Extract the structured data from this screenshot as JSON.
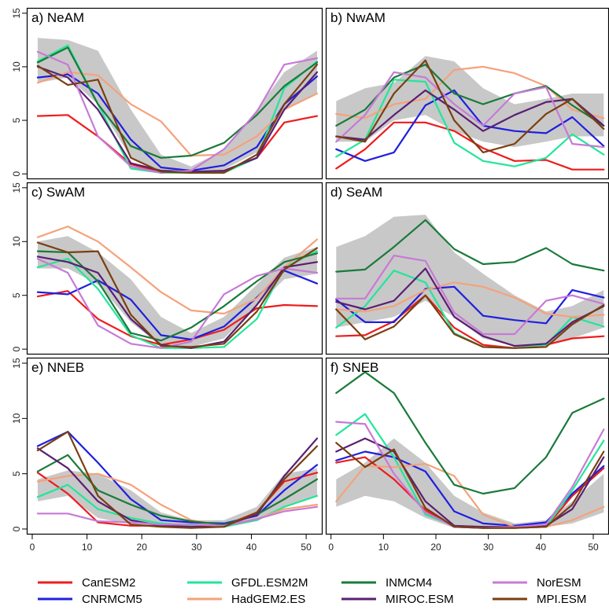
{
  "chart_data": [
    {
      "type": "line",
      "title": "a) NeAM",
      "xlim": [
        -1,
        53
      ],
      "ylim": [
        -0.5,
        15.5
      ],
      "x": [
        1,
        6.5,
        12,
        18,
        23.5,
        29,
        35,
        41,
        46,
        52
      ],
      "band": {
        "lower": [
          8.5,
          9.0,
          6.5,
          1.5,
          0.3,
          0.2,
          0.4,
          2.0,
          6.0,
          7.5
        ],
        "upper": [
          12.7,
          12.5,
          11.5,
          6.0,
          1.8,
          0.7,
          2.2,
          6.0,
          9.5,
          11.5
        ]
      },
      "series": [
        {
          "name": "CanESM2",
          "values": [
            5.4,
            5.5,
            3.5,
            0.9,
            0.2,
            0.1,
            0.2,
            1.5,
            4.8,
            5.4
          ]
        },
        {
          "name": "CNRMCM5",
          "values": [
            9.0,
            9.3,
            7.5,
            3.2,
            0.6,
            0.3,
            0.8,
            2.5,
            6.5,
            9.1
          ]
        },
        {
          "name": "GFDL.ESM2M",
          "values": [
            10.5,
            12.0,
            6.5,
            0.5,
            0.1,
            0.1,
            0.1,
            1.5,
            8.0,
            10.5
          ]
        },
        {
          "name": "HadGEM2.ES",
          "values": [
            8.5,
            9.5,
            9.2,
            6.5,
            4.9,
            1.7,
            1.8,
            3.5,
            6.0,
            7.5
          ]
        },
        {
          "name": "INMCM4",
          "values": [
            10.4,
            11.8,
            6.5,
            2.6,
            1.5,
            1.7,
            2.9,
            5.5,
            8.2,
            10.4
          ]
        },
        {
          "name": "MIROC.ESM",
          "values": [
            10.0,
            9.0,
            6.0,
            1.0,
            0.3,
            0.2,
            0.3,
            1.5,
            6.0,
            9.5
          ]
        },
        {
          "name": "NorESM",
          "values": [
            11.4,
            10.2,
            3.5,
            0.7,
            0.1,
            0.3,
            2.3,
            5.8,
            10.2,
            10.8
          ]
        },
        {
          "name": "MPI.ESM",
          "values": [
            10.1,
            8.3,
            8.8,
            1.5,
            0.2,
            0.1,
            0.1,
            1.8,
            6.5,
            10.2
          ]
        }
      ]
    },
    {
      "type": "line",
      "title": "b) NwAM",
      "xlim": [
        -1,
        53
      ],
      "ylim": [
        -0.5,
        15.5
      ],
      "x": [
        1,
        6.5,
        12,
        18,
        23.5,
        29,
        35,
        41,
        46,
        52
      ],
      "band": {
        "lower": [
          3.0,
          3.0,
          5.0,
          5.5,
          4.0,
          3.0,
          2.5,
          3.0,
          3.5,
          3.5
        ],
        "upper": [
          6.8,
          8.0,
          8.5,
          11.0,
          10.5,
          8.0,
          6.5,
          7.0,
          7.5,
          7.5
        ]
      },
      "series": [
        {
          "name": "CanESM2",
          "values": [
            0.5,
            2.3,
            4.8,
            4.8,
            4.0,
            2.4,
            1.2,
            1.3,
            0.4,
            0.4
          ]
        },
        {
          "name": "CNRMCM5",
          "values": [
            2.3,
            1.2,
            2.0,
            6.4,
            7.8,
            4.5,
            4.0,
            3.8,
            5.3,
            2.6
          ]
        },
        {
          "name": "GFDL.ESM2M",
          "values": [
            1.6,
            3.2,
            8.8,
            8.6,
            2.9,
            1.2,
            0.7,
            1.5,
            3.7,
            1.8
          ]
        },
        {
          "name": "HadGEM2.ES",
          "values": [
            5.6,
            5.2,
            6.5,
            7.0,
            9.7,
            10.0,
            9.4,
            8.2,
            6.0,
            5.2
          ]
        },
        {
          "name": "INMCM4",
          "values": [
            4.5,
            6.0,
            9.0,
            10.2,
            7.5,
            6.5,
            7.5,
            8.2,
            6.4,
            4.5
          ]
        },
        {
          "name": "MIROC.ESM",
          "values": [
            3.5,
            3.2,
            5.5,
            7.8,
            6.0,
            4.0,
            5.5,
            6.7,
            7.0,
            4.5
          ]
        },
        {
          "name": "NorESM",
          "values": [
            3.0,
            5.5,
            9.5,
            9.0,
            6.5,
            4.5,
            7.5,
            8.1,
            2.8,
            2.5
          ]
        },
        {
          "name": "MPI.ESM",
          "values": [
            3.5,
            3.0,
            7.5,
            10.6,
            5.0,
            2.0,
            2.8,
            5.6,
            7.0,
            4.2
          ]
        }
      ]
    },
    {
      "type": "line",
      "title": "c) SwAM",
      "xlim": [
        -1,
        53
      ],
      "ylim": [
        -0.5,
        15.5
      ],
      "x": [
        1,
        6.5,
        12,
        18,
        23.5,
        29,
        35,
        41,
        46,
        52
      ],
      "band": {
        "lower": [
          7.5,
          7.5,
          6.0,
          2.5,
          0.3,
          0.2,
          1.0,
          4.0,
          6.5,
          7.0
        ],
        "upper": [
          10.0,
          10.5,
          9.0,
          6.5,
          3.0,
          1.5,
          3.0,
          6.0,
          8.5,
          9.5
        ]
      },
      "series": [
        {
          "name": "CanESM2",
          "values": [
            4.9,
            5.4,
            2.8,
            1.2,
            0.4,
            0.9,
            1.8,
            3.8,
            4.1,
            4.0
          ]
        },
        {
          "name": "CNRMCM5",
          "values": [
            5.3,
            5.1,
            6.4,
            4.6,
            1.3,
            0.9,
            2.1,
            4.8,
            7.3,
            6.1
          ]
        },
        {
          "name": "GFDL.ESM2M",
          "values": [
            7.6,
            8.4,
            5.6,
            1.3,
            0.1,
            0.1,
            0.2,
            2.8,
            7.6,
            9.1
          ]
        },
        {
          "name": "HadGEM2.ES",
          "values": [
            10.4,
            11.4,
            10.0,
            7.6,
            5.3,
            3.6,
            3.3,
            4.7,
            7.6,
            10.2
          ]
        },
        {
          "name": "INMCM4",
          "values": [
            9.1,
            9.0,
            6.3,
            1.5,
            0.8,
            2.0,
            4.0,
            6.3,
            8.1,
            8.9
          ]
        },
        {
          "name": "MIROC.ESM",
          "values": [
            8.6,
            8.1,
            7.1,
            2.8,
            0.4,
            0.1,
            0.7,
            4.1,
            7.6,
            8.1
          ]
        },
        {
          "name": "NorESM",
          "values": [
            8.4,
            7.1,
            2.2,
            0.5,
            0.1,
            0.7,
            5.1,
            6.8,
            7.5,
            7.1
          ]
        },
        {
          "name": "MPI.ESM",
          "values": [
            9.9,
            9.0,
            9.1,
            3.2,
            0.3,
            0.2,
            0.5,
            3.5,
            7.4,
            9.4
          ]
        }
      ]
    },
    {
      "type": "line",
      "title": "d) SeAM",
      "xlim": [
        -1,
        53
      ],
      "ylim": [
        -0.5,
        15.5
      ],
      "x": [
        1,
        6.5,
        12,
        18,
        23.5,
        29,
        35,
        41,
        46,
        52
      ],
      "band": {
        "lower": [
          2.0,
          2.5,
          3.0,
          4.5,
          3.0,
          1.0,
          0.3,
          0.3,
          1.0,
          2.0
        ],
        "upper": [
          9.5,
          10.5,
          12.3,
          12.5,
          9.0,
          7.0,
          5.0,
          3.5,
          4.0,
          5.5
        ]
      },
      "series": [
        {
          "name": "CanESM2",
          "values": [
            1.2,
            1.3,
            2.6,
            5.0,
            2.0,
            0.4,
            0.1,
            0.4,
            1.0,
            1.2
          ]
        },
        {
          "name": "CNRMCM5",
          "values": [
            4.6,
            2.5,
            2.5,
            5.6,
            5.8,
            3.1,
            2.7,
            2.4,
            5.5,
            4.8
          ]
        },
        {
          "name": "GFDL.ESM2M",
          "values": [
            2.0,
            4.0,
            7.3,
            6.2,
            1.5,
            0.2,
            0.1,
            0.4,
            3.0,
            2.1
          ]
        },
        {
          "name": "HadGEM2.ES",
          "values": [
            3.7,
            3.5,
            4.0,
            5.5,
            6.2,
            5.8,
            4.8,
            3.3,
            3.0,
            3.2
          ]
        },
        {
          "name": "INMCM4",
          "values": [
            7.2,
            7.4,
            9.5,
            12.0,
            9.3,
            7.9,
            8.1,
            9.4,
            7.9,
            7.3
          ]
        },
        {
          "name": "MIROC.ESM",
          "values": [
            4.4,
            3.7,
            4.5,
            7.5,
            3.0,
            1.2,
            0.3,
            0.5,
            2.5,
            4.0
          ]
        },
        {
          "name": "NorESM",
          "values": [
            4.7,
            4.7,
            8.7,
            8.2,
            3.4,
            1.4,
            1.4,
            4.5,
            5.0,
            4.2
          ]
        },
        {
          "name": "MPI.ESM",
          "values": [
            3.7,
            0.9,
            2.1,
            5.0,
            1.4,
            0.2,
            0.1,
            0.2,
            2.3,
            4.1
          ]
        }
      ]
    },
    {
      "type": "line",
      "title": "e) NNEB",
      "xlim": [
        -1,
        53
      ],
      "ylim": [
        -0.5,
        15.5
      ],
      "x": [
        1,
        6.5,
        12,
        18,
        23.5,
        29,
        35,
        41,
        46,
        52
      ],
      "band": {
        "lower": [
          2.5,
          3.0,
          1.0,
          0.4,
          0.2,
          0.1,
          0.2,
          0.7,
          2.0,
          3.0
        ],
        "upper": [
          4.5,
          5.3,
          5.0,
          3.5,
          1.5,
          0.8,
          0.8,
          2.0,
          5.0,
          5.5
        ]
      },
      "series": [
        {
          "name": "CanESM2",
          "values": [
            5.1,
            3.2,
            0.6,
            0.3,
            0.3,
            0.2,
            0.3,
            1.5,
            4.3,
            5.1
          ]
        },
        {
          "name": "CNRMCM5",
          "values": [
            7.5,
            8.8,
            6.0,
            2.7,
            0.8,
            0.6,
            0.5,
            1.2,
            3.5,
            5.8
          ]
        },
        {
          "name": "GFDL.ESM2M",
          "values": [
            2.9,
            4.0,
            1.8,
            1.0,
            0.5,
            0.3,
            0.2,
            0.8,
            2.0,
            3.0
          ]
        },
        {
          "name": "HadGEM2.ES",
          "values": [
            4.3,
            4.8,
            5.0,
            4.0,
            2.2,
            0.8,
            0.3,
            0.9,
            1.8,
            2.2
          ]
        },
        {
          "name": "INMCM4",
          "values": [
            5.2,
            6.7,
            3.5,
            2.2,
            1.2,
            0.7,
            0.4,
            1.3,
            2.7,
            4.5
          ]
        },
        {
          "name": "MIROC.ESM",
          "values": [
            7.3,
            5.5,
            2.5,
            0.8,
            0.3,
            0.2,
            0.3,
            1.3,
            4.8,
            8.2
          ]
        },
        {
          "name": "NorESM",
          "values": [
            1.4,
            1.4,
            0.7,
            0.6,
            0.4,
            0.4,
            0.3,
            0.9,
            1.6,
            2.0
          ]
        },
        {
          "name": "MPI.ESM",
          "values": [
            7.1,
            8.8,
            3.0,
            0.4,
            0.2,
            0.1,
            0.2,
            1.5,
            4.5,
            7.5
          ]
        }
      ]
    },
    {
      "type": "line",
      "title": "f) SNEB",
      "xlim": [
        -1,
        53
      ],
      "ylim": [
        -0.5,
        15.5
      ],
      "x": [
        1,
        6.5,
        12,
        18,
        23.5,
        29,
        35,
        41,
        46,
        52
      ],
      "band": {
        "lower": [
          2.0,
          3.0,
          2.5,
          1.0,
          0.1,
          0.1,
          0.1,
          0.2,
          0.5,
          1.5
        ],
        "upper": [
          4.5,
          6.0,
          8.2,
          6.0,
          3.0,
          1.5,
          0.5,
          0.8,
          2.5,
          5.0
        ]
      },
      "series": [
        {
          "name": "CanESM2",
          "values": [
            6.0,
            6.5,
            4.5,
            1.7,
            0.2,
            0.1,
            0.1,
            0.2,
            3.0,
            5.5
          ]
        },
        {
          "name": "CNRMCM5",
          "values": [
            6.2,
            7.0,
            6.5,
            5.2,
            1.6,
            0.5,
            0.3,
            0.6,
            3.2,
            5.7
          ]
        },
        {
          "name": "GFDL.ESM2M",
          "values": [
            8.5,
            10.4,
            6.5,
            1.3,
            0.3,
            0.1,
            0.1,
            0.2,
            3.5,
            8.0
          ]
        },
        {
          "name": "HadGEM2.ES",
          "values": [
            2.5,
            5.7,
            5.6,
            5.9,
            4.8,
            1.3,
            0.2,
            0.2,
            0.8,
            2.0
          ]
        },
        {
          "name": "INMCM4",
          "values": [
            12.3,
            14.2,
            12.3,
            7.8,
            4.0,
            3.2,
            3.7,
            6.5,
            10.5,
            11.8
          ]
        },
        {
          "name": "MIROC.ESM",
          "values": [
            7.0,
            8.2,
            7.0,
            2.5,
            0.3,
            0.2,
            0.2,
            0.3,
            1.8,
            6.5
          ]
        },
        {
          "name": "NorESM",
          "values": [
            9.7,
            9.5,
            5.0,
            1.5,
            0.2,
            0.1,
            0.2,
            0.4,
            3.8,
            9.0
          ]
        },
        {
          "name": "MPI.ESM",
          "values": [
            7.8,
            5.6,
            7.2,
            1.9,
            0.2,
            0.1,
            0.1,
            0.2,
            2.2,
            7.0
          ]
        }
      ]
    }
  ],
  "axes": {
    "y_ticks": [
      0,
      5,
      10,
      15
    ],
    "x_ticks": [
      0,
      10,
      20,
      30,
      40,
      50
    ]
  },
  "legend": [
    {
      "name": "CanESM2",
      "color": "#ee1c1c"
    },
    {
      "name": "CNRMCM5",
      "color": "#1f1fe0"
    },
    {
      "name": "GFDL.ESM2M",
      "color": "#22e69a"
    },
    {
      "name": "HadGEM2.ES",
      "color": "#f5a27a"
    },
    {
      "name": "INMCM4",
      "color": "#1a7a3a"
    },
    {
      "name": "MIROC.ESM",
      "color": "#5a1f73"
    },
    {
      "name": "NorESM",
      "color": "#c77ad6"
    },
    {
      "name": "MPI.ESM",
      "color": "#7a3f10"
    }
  ],
  "colors": {
    "band": "#c8c8c8",
    "frame": "#000000"
  }
}
